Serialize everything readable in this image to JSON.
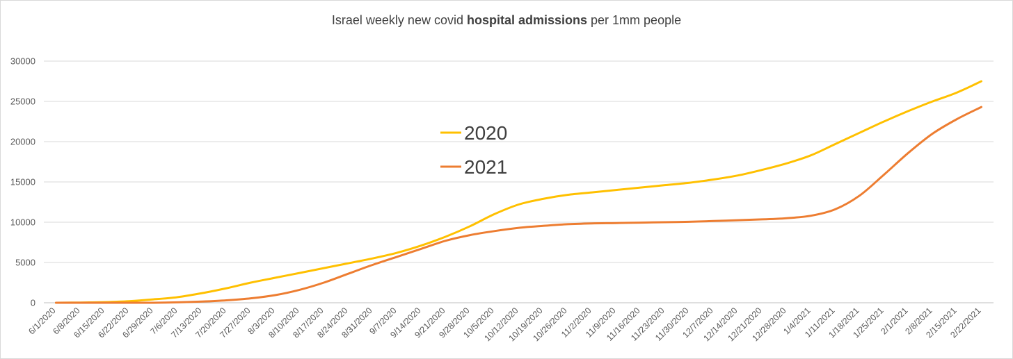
{
  "chart_data": {
    "type": "line",
    "title": {
      "pre": "Israel weekly new covid ",
      "bold": "hospital admissions",
      "post": " per 1mm people"
    },
    "xlabel": "",
    "ylabel": "",
    "ylim": [
      0,
      30000
    ],
    "yticks": [
      0,
      5000,
      10000,
      15000,
      20000,
      25000,
      30000
    ],
    "categories": [
      "6/1/2020",
      "6/8/2020",
      "6/15/2020",
      "6/22/2020",
      "6/29/2020",
      "7/6/2020",
      "7/13/2020",
      "7/20/2020",
      "7/27/2020",
      "8/3/2020",
      "8/10/2020",
      "8/17/2020",
      "8/24/2020",
      "8/31/2020",
      "9/7/2020",
      "9/14/2020",
      "9/21/2020",
      "9/28/2020",
      "10/5/2020",
      "10/12/2020",
      "10/19/2020",
      "10/26/2020",
      "11/2/2020",
      "11/9/2020",
      "11/16/2020",
      "11/23/2020",
      "11/30/2020",
      "12/7/2020",
      "12/14/2020",
      "12/21/2020",
      "12/28/2020",
      "1/4/2021",
      "1/11/2021",
      "1/18/2021",
      "1/25/2021",
      "2/1/2021",
      "2/8/2021",
      "2/15/2021",
      "2/22/2021"
    ],
    "grid": true,
    "legend_position": "center",
    "series": [
      {
        "name": "2020",
        "color": "#FFC000",
        "values": [
          0,
          30,
          80,
          200,
          420,
          700,
          1200,
          1800,
          2500,
          3100,
          3700,
          4300,
          4900,
          5500,
          6200,
          7100,
          8200,
          9500,
          11000,
          12200,
          12900,
          13400,
          13700,
          14000,
          14300,
          14600,
          14900,
          15300,
          15800,
          16500,
          17300,
          18300,
          19700,
          21100,
          22500,
          23800,
          25000,
          26100,
          27500
        ]
      },
      {
        "name": "2021",
        "color": "#ED7D31",
        "values": [
          0,
          0,
          0,
          0,
          0,
          50,
          150,
          300,
          550,
          950,
          1600,
          2500,
          3600,
          4700,
          5700,
          6700,
          7700,
          8400,
          8900,
          9300,
          9550,
          9750,
          9850,
          9900,
          9950,
          10000,
          10050,
          10150,
          10250,
          10350,
          10500,
          10800,
          11600,
          13300,
          15900,
          18600,
          21000,
          22800,
          24300
        ]
      }
    ]
  }
}
